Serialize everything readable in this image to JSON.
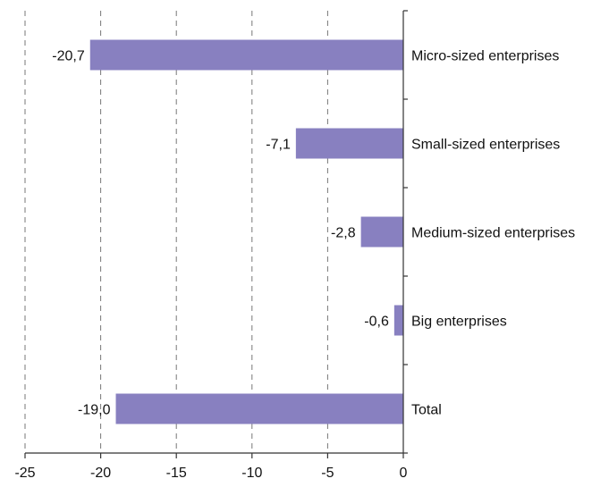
{
  "chart_data": {
    "type": "bar",
    "orientation": "horizontal",
    "categories": [
      "Micro-sized enterprises",
      "Small-sized enterprises",
      "Medium-sized enterprises",
      "Big enterprises",
      "Total"
    ],
    "values": [
      -20.7,
      -7.1,
      -2.8,
      -0.6,
      -19.0
    ],
    "data_labels": [
      "-20,7",
      "-7,1",
      "-2,8",
      "-0,6",
      "-19,0"
    ],
    "xlim": [
      -25,
      0
    ],
    "xticks": [
      -25,
      -20,
      -15,
      -10,
      -5,
      0
    ],
    "xtick_labels": [
      "-25",
      "-20",
      "-15",
      "-10",
      "-5",
      "0"
    ],
    "grid": "vertical dashed",
    "bar_color": "#8880c0"
  }
}
